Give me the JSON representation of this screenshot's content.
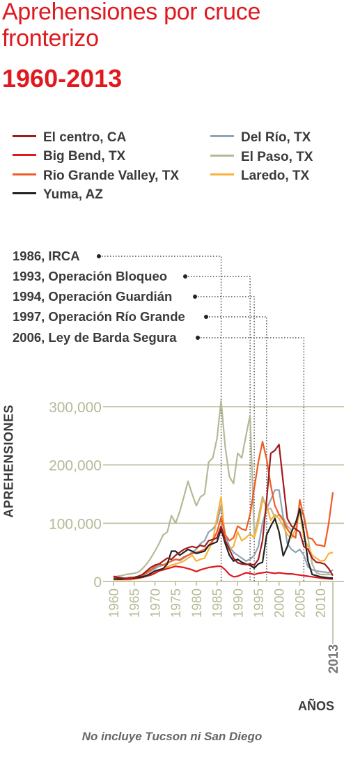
{
  "header": {
    "title": "Aprehensiones por cruce fronterizo",
    "subtitle": "1960-2013"
  },
  "events": [
    {
      "label": "1986, IRCA",
      "year": 1986
    },
    {
      "label": "1993, Operación Bloqueo",
      "year": 1993
    },
    {
      "label": "1994, Operación Guardián",
      "year": 1994
    },
    {
      "label": "1997, Operación Río Grande",
      "year": 1997
    },
    {
      "label": "2006, Ley de Barda Segura",
      "year": 2006
    }
  ],
  "footnote": "No incluye Tucson ni San Diego",
  "chart_data": {
    "type": "line",
    "xlabel": "AÑOS",
    "ylabel": "APREHENSIONES",
    "xlim": [
      1960,
      2013
    ],
    "ylim": [
      0,
      300000
    ],
    "xticks": [
      "1960",
      "1965",
      "1970",
      "1975",
      "1980",
      "1985",
      "1990",
      "1995",
      "2000",
      "2005",
      "2010"
    ],
    "xtick_extra": "2013",
    "yticks": [
      "0",
      "100,000",
      "200,000",
      "300,000"
    ],
    "ytick_values": [
      0,
      100000,
      200000,
      300000
    ],
    "grid": true,
    "legend_placement": "top",
    "x": [
      1960,
      1961,
      1962,
      1963,
      1964,
      1965,
      1966,
      1967,
      1968,
      1969,
      1970,
      1971,
      1972,
      1973,
      1974,
      1975,
      1976,
      1977,
      1978,
      1979,
      1980,
      1981,
      1982,
      1983,
      1984,
      1985,
      1986,
      1987,
      1988,
      1989,
      1990,
      1991,
      1992,
      1993,
      1994,
      1995,
      1996,
      1997,
      1998,
      1999,
      2000,
      2001,
      2002,
      2003,
      2004,
      2005,
      2006,
      2007,
      2008,
      2009,
      2010,
      2011,
      2012,
      2013
    ],
    "series": [
      {
        "name": "El centro, CA",
        "color": "#9e1b1e",
        "values": [
          9000,
          7000,
          6000,
          5000,
          6000,
          7000,
          9000,
          12000,
          18000,
          24000,
          28000,
          30000,
          35000,
          40000,
          38000,
          45000,
          50000,
          55000,
          58000,
          60000,
          58000,
          62000,
          60000,
          70000,
          72000,
          75000,
          95000,
          70000,
          55000,
          40000,
          32000,
          30000,
          29000,
          30000,
          28000,
          38000,
          70000,
          140000,
          220000,
          225000,
          235000,
          170000,
          108000,
          95000,
          90000,
          85000,
          60000,
          55000,
          40000,
          33000,
          32000,
          30000,
          22000,
          10000
        ]
      },
      {
        "name": "Big Bend, TX",
        "color": "#e0191f",
        "values": [
          6000,
          5000,
          4000,
          4000,
          4000,
          5000,
          6000,
          7000,
          9000,
          11000,
          14000,
          18000,
          20000,
          22000,
          24000,
          26000,
          25000,
          24000,
          22000,
          20000,
          17000,
          20000,
          22000,
          24000,
          25000,
          26000,
          26000,
          20000,
          12000,
          8000,
          9000,
          12000,
          15000,
          14000,
          12000,
          14000,
          15000,
          16000,
          15000,
          14000,
          15000,
          14000,
          13000,
          13000,
          12000,
          11000,
          10000,
          9000,
          8000,
          7000,
          6000,
          5000,
          4500,
          4000
        ]
      },
      {
        "name": "Rio Grande Valley, TX",
        "color": "#ef5b23",
        "values": [
          5000,
          4000,
          4000,
          5000,
          5000,
          6000,
          8000,
          10000,
          15000,
          20000,
          25000,
          30000,
          28000,
          32000,
          35000,
          38000,
          37000,
          42000,
          45000,
          48000,
          50000,
          52000,
          55000,
          62000,
          70000,
          85000,
          110000,
          80000,
          70000,
          75000,
          95000,
          90000,
          88000,
          115000,
          160000,
          205000,
          240000,
          210000,
          165000,
          130000,
          115000,
          105000,
          90000,
          80000,
          75000,
          140000,
          110000,
          75000,
          73000,
          63000,
          62000,
          60000,
          100000,
          153000
        ]
      },
      {
        "name": "Yuma, AZ",
        "color": "#222222",
        "values": [
          4000,
          4000,
          4000,
          5000,
          6000,
          6000,
          7000,
          8000,
          10000,
          14000,
          18000,
          20000,
          22000,
          30000,
          52000,
          52000,
          45000,
          50000,
          55000,
          52000,
          48000,
          50000,
          52000,
          62000,
          65000,
          68000,
          90000,
          65000,
          45000,
          35000,
          38000,
          33000,
          30000,
          28000,
          23000,
          30000,
          33000,
          80000,
          95000,
          108000,
          85000,
          44000,
          60000,
          85000,
          100000,
          125000,
          85000,
          35000,
          12000,
          10000,
          8000,
          7000,
          6000,
          6000
        ]
      },
      {
        "name": "Del Río, TX",
        "color": "#8fa5b4",
        "values": [
          7000,
          6000,
          6000,
          6000,
          7000,
          7000,
          8000,
          10000,
          14000,
          18000,
          22000,
          26000,
          28000,
          32000,
          35000,
          38000,
          36000,
          40000,
          45000,
          50000,
          55000,
          65000,
          70000,
          85000,
          90000,
          100000,
          130000,
          80000,
          60000,
          50000,
          45000,
          40000,
          35000,
          38000,
          45000,
          60000,
          100000,
          125000,
          140000,
          157000,
          157000,
          110000,
          65000,
          55000,
          50000,
          55000,
          45000,
          25000,
          20000,
          18000,
          17000,
          16000,
          15000,
          20000
        ]
      },
      {
        "name": "El Paso, TX",
        "color": "#b5b996",
        "values": [
          8000,
          9000,
          10000,
          12000,
          13000,
          14000,
          16000,
          22000,
          30000,
          40000,
          52000,
          65000,
          80000,
          85000,
          113000,
          100000,
          120000,
          145000,
          172000,
          150000,
          130000,
          145000,
          150000,
          205000,
          212000,
          245000,
          310000,
          230000,
          180000,
          168000,
          220000,
          212000,
          250000,
          285000,
          80000,
          110000,
          146000,
          125000,
          125000,
          110000,
          115000,
          110000,
          95000,
          88000,
          100000,
          120000,
          115000,
          75000,
          30000,
          15000,
          12000,
          12000,
          12000,
          12000
        ]
      },
      {
        "name": "Laredo, TX",
        "color": "#f9b13b",
        "values": [
          3000,
          3000,
          3000,
          3000,
          3000,
          4000,
          5000,
          7000,
          9000,
          12000,
          15000,
          20000,
          22000,
          25000,
          28000,
          30000,
          32000,
          35000,
          40000,
          45000,
          35000,
          38000,
          40000,
          55000,
          70000,
          110000,
          145000,
          70000,
          55000,
          60000,
          85000,
          70000,
          75000,
          82000,
          75000,
          100000,
          140000,
          130000,
          105000,
          115000,
          108000,
          95000,
          80000,
          75000,
          90000,
          120000,
          75000,
          60000,
          45000,
          40000,
          35000,
          36000,
          48000,
          50000
        ]
      }
    ]
  }
}
